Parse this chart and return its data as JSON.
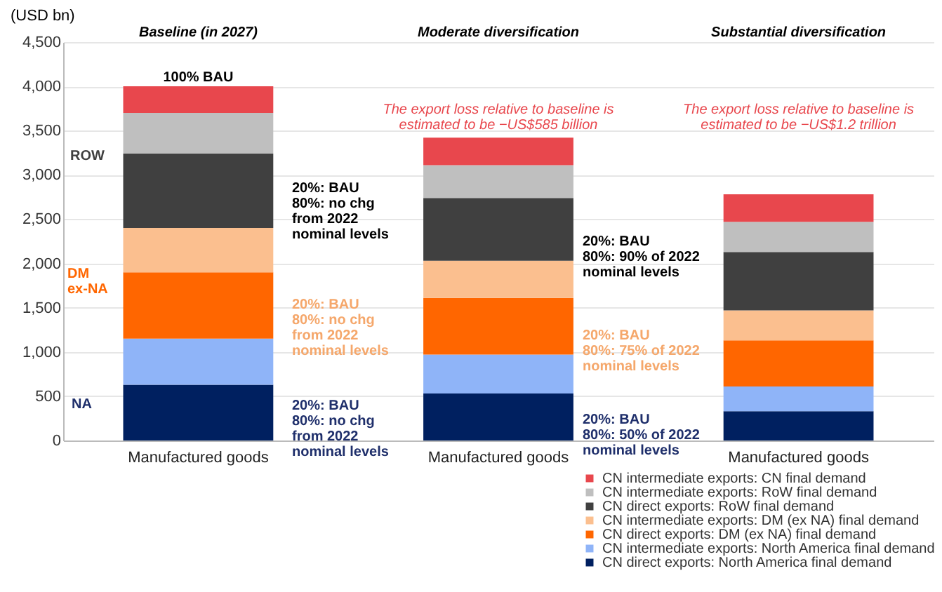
{
  "chart_data": {
    "type": "bar",
    "stacked": true,
    "ylabel": "(USD bn)",
    "categories": [
      "Manufactured goods",
      "Manufactured goods",
      "Manufactured goods"
    ],
    "series": [
      {
        "name": "CN direct exports: North America final demand",
        "color": "#002060",
        "values": [
          630,
          530,
          330
        ]
      },
      {
        "name": "CN intermediate exports: North America final demand",
        "color": "#8fb4f8",
        "values": [
          520,
          440,
          280
        ]
      },
      {
        "name": "CN direct exports: DM (ex NA) final demand",
        "color": "#ff6600",
        "values": [
          750,
          640,
          520
        ]
      },
      {
        "name": "CN intermediate exports: DM (ex NA) final demand",
        "color": "#fbbf8f",
        "values": [
          500,
          420,
          340
        ]
      },
      {
        "name": "CN direct exports: RoW final demand",
        "color": "#404040",
        "values": [
          840,
          710,
          660
        ]
      },
      {
        "name": "CN intermediate exports: RoW final demand",
        "color": "#bfbfbf",
        "values": [
          460,
          370,
          340
        ]
      },
      {
        "name": "CN intermediate exports: CN final demand",
        "color": "#e8474d",
        "values": [
          300,
          310,
          310
        ]
      }
    ],
    "ylim": [
      0,
      4500
    ],
    "yticks": [
      {
        "value": 0,
        "label": "0"
      },
      {
        "value": 500,
        "label": "500"
      },
      {
        "value": 1000,
        "label": "1,000"
      },
      {
        "value": 1500,
        "label": "1,500"
      },
      {
        "value": 2000,
        "label": "2,000"
      },
      {
        "value": 2500,
        "label": "2,500"
      },
      {
        "value": 3000,
        "label": "3,000"
      },
      {
        "value": 3500,
        "label": "3,500"
      },
      {
        "value": 4000,
        "label": "4,000"
      },
      {
        "value": 4500,
        "label": "4,500"
      }
    ],
    "grid": "y",
    "legend": "bottom right",
    "annotations": [
      "Baseline (in 2027)",
      "Moderate diversification",
      "Substantial diversification",
      "100% BAU",
      "ROW",
      "DM\nex-NA",
      "NA",
      "20%: BAU\n80%: no chg\nfrom 2022\nnominal levels",
      "20%: BAU\n80%: no chg\nfrom 2022\nnominal levels",
      "20%: BAU\n80%: no chg\nfrom 2022\nnominal levels",
      "The export loss relative to baseline is\nestimated to be −US$585 billion",
      "20%: BAU\n80%: 90% of 2022\nnominal levels",
      "20%: BAU\n80%: 75% of 2022\nnominal levels",
      "20%: BAU\n80%: 50% of 2022\nnominal levels",
      "The export loss relative to baseline is\nestimated to be −US$1.2 trillion"
    ]
  }
}
